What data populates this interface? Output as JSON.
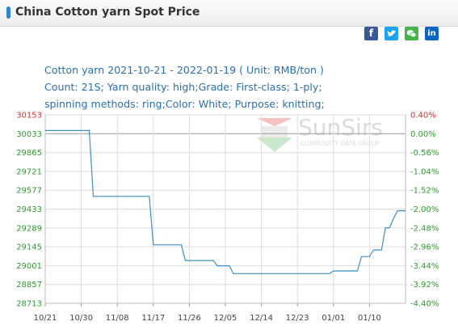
{
  "header": {
    "title": "China Cotton yarn Spot Price"
  },
  "share_icons": [
    {
      "name": "facebook-icon",
      "color": "#3b5998",
      "glyph": "f"
    },
    {
      "name": "twitter-icon",
      "color": "#1da1f2",
      "glyph": "t"
    },
    {
      "name": "wechat-icon",
      "color": "#44b549",
      "glyph": ""
    },
    {
      "name": "linkedin-icon",
      "color": "#0a66c2",
      "glyph": "in"
    }
  ],
  "info": {
    "line1": "Cotton yarn 2021-10-21 - 2022-01-19    ( Unit: RMB/ton )",
    "line2": "Count: 21S; Yarn quality: high;Grade: First-class; 1-ply;",
    "line3": "spinning methods: ring;Color: White; Purpose: knitting;"
  },
  "watermark": {
    "name": "SunSirs",
    "tagline": "COMMODITY DATA GROUP"
  },
  "colors": {
    "line": "#3d8fc9",
    "left_axis": "#2e9b2e",
    "right_axis": "#2e9b2e",
    "top_axis": "#d03030",
    "baseline": "#999999",
    "grid": "#dddddd"
  },
  "chart_data": {
    "type": "line",
    "title": "",
    "xlabel": "",
    "ylabel": "",
    "x_ticks": [
      "10/21",
      "10/30",
      "11/08",
      "11/17",
      "11/26",
      "12/05",
      "12/14",
      "12/23",
      "01/01",
      "01/10"
    ],
    "x_range": [
      "2021-10-21",
      "2022-01-19"
    ],
    "ylim": [
      28713,
      30153
    ],
    "left_ticks": [
      "30153",
      "30033",
      "29865",
      "29721",
      "29577",
      "29433",
      "29289",
      "29145",
      "29001",
      "28857",
      "28713"
    ],
    "right_ticks": [
      "0.40%",
      "0.00%",
      "-0.56%",
      "-1.04%",
      "-1.52%",
      "-2.00%",
      "-2.48%",
      "-2.96%",
      "-3.44%",
      "-3.92%",
      "-4.40%"
    ],
    "base_value": 30033,
    "grid": true,
    "series": [
      {
        "values": [
          {
            "x": "2021-10-21",
            "y": 30033
          },
          {
            "x": "2021-11-01",
            "y": 30033
          },
          {
            "x": "2021-11-02",
            "y": 29530
          },
          {
            "x": "2021-11-16",
            "y": 29530
          },
          {
            "x": "2021-11-17",
            "y": 29160
          },
          {
            "x": "2021-11-24",
            "y": 29160
          },
          {
            "x": "2021-11-25",
            "y": 29040
          },
          {
            "x": "2021-12-02",
            "y": 29040
          },
          {
            "x": "2021-12-03",
            "y": 29000
          },
          {
            "x": "2021-12-06",
            "y": 29000
          },
          {
            "x": "2021-12-07",
            "y": 28940
          },
          {
            "x": "2021-12-31",
            "y": 28940
          },
          {
            "x": "2022-01-01",
            "y": 28960
          },
          {
            "x": "2022-01-07",
            "y": 28960
          },
          {
            "x": "2022-01-08",
            "y": 29070
          },
          {
            "x": "2022-01-10",
            "y": 29070
          },
          {
            "x": "2022-01-11",
            "y": 29120
          },
          {
            "x": "2022-01-13",
            "y": 29120
          },
          {
            "x": "2022-01-14",
            "y": 29290
          },
          {
            "x": "2022-01-15",
            "y": 29290
          },
          {
            "x": "2022-01-16",
            "y": 29360
          },
          {
            "x": "2022-01-17",
            "y": 29420
          },
          {
            "x": "2022-01-19",
            "y": 29420
          }
        ]
      }
    ]
  }
}
